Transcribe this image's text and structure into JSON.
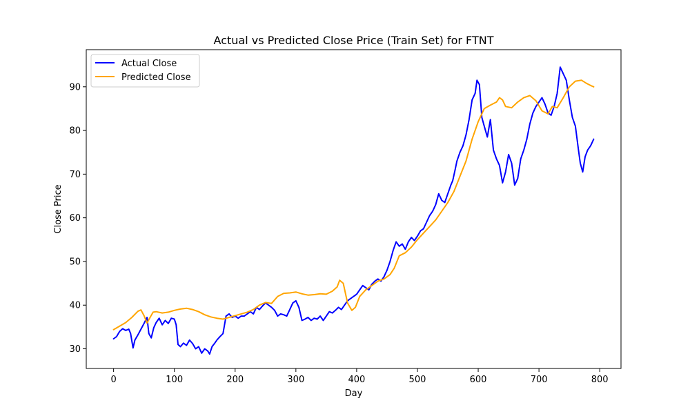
{
  "chart_data": {
    "type": "line",
    "title": "Actual vs Predicted Close Price (Train Set) for FTNT",
    "xlabel": "Day",
    "ylabel": "Close Price",
    "xlim": [
      -45,
      835
    ],
    "ylim": [
      25.5,
      98.5
    ],
    "xticks": [
      0,
      100,
      200,
      300,
      400,
      500,
      600,
      700,
      800
    ],
    "yticks": [
      30,
      40,
      50,
      60,
      70,
      80,
      90
    ],
    "grid": false,
    "legend_position": "top-left",
    "series": [
      {
        "name": "Actual Close",
        "color": "#0000ff",
        "points": [
          [
            0,
            32.3
          ],
          [
            5,
            32.8
          ],
          [
            10,
            34.0
          ],
          [
            15,
            34.6
          ],
          [
            20,
            34.2
          ],
          [
            25,
            34.5
          ],
          [
            28,
            33.5
          ],
          [
            32,
            30.2
          ],
          [
            35,
            32.0
          ],
          [
            40,
            33.2
          ],
          [
            45,
            34.5
          ],
          [
            50,
            35.8
          ],
          [
            55,
            37.2
          ],
          [
            58,
            33.5
          ],
          [
            62,
            32.5
          ],
          [
            66,
            34.8
          ],
          [
            70,
            36.0
          ],
          [
            75,
            37.0
          ],
          [
            80,
            35.5
          ],
          [
            85,
            36.5
          ],
          [
            90,
            35.8
          ],
          [
            95,
            37.0
          ],
          [
            100,
            36.8
          ],
          [
            103,
            35.5
          ],
          [
            106,
            31.0
          ],
          [
            110,
            30.5
          ],
          [
            115,
            31.3
          ],
          [
            120,
            30.8
          ],
          [
            125,
            32.0
          ],
          [
            130,
            31.2
          ],
          [
            135,
            30.0
          ],
          [
            140,
            30.5
          ],
          [
            145,
            29.0
          ],
          [
            150,
            30.0
          ],
          [
            155,
            29.5
          ],
          [
            158,
            28.8
          ],
          [
            162,
            30.5
          ],
          [
            166,
            31.2
          ],
          [
            170,
            32.0
          ],
          [
            175,
            32.8
          ],
          [
            180,
            33.5
          ],
          [
            185,
            37.5
          ],
          [
            190,
            38.0
          ],
          [
            195,
            37.2
          ],
          [
            200,
            37.5
          ],
          [
            205,
            37.0
          ],
          [
            210,
            37.5
          ],
          [
            215,
            37.5
          ],
          [
            220,
            38.0
          ],
          [
            225,
            38.5
          ],
          [
            230,
            38.0
          ],
          [
            235,
            39.5
          ],
          [
            240,
            39.0
          ],
          [
            245,
            39.8
          ],
          [
            250,
            40.5
          ],
          [
            255,
            40.0
          ],
          [
            260,
            39.5
          ],
          [
            265,
            38.8
          ],
          [
            270,
            37.5
          ],
          [
            275,
            38.0
          ],
          [
            280,
            37.8
          ],
          [
            285,
            37.5
          ],
          [
            290,
            39.0
          ],
          [
            295,
            40.5
          ],
          [
            300,
            41.0
          ],
          [
            305,
            39.5
          ],
          [
            310,
            36.5
          ],
          [
            315,
            36.8
          ],
          [
            320,
            37.2
          ],
          [
            325,
            36.5
          ],
          [
            330,
            37.0
          ],
          [
            335,
            36.8
          ],
          [
            340,
            37.5
          ],
          [
            345,
            36.5
          ],
          [
            350,
            37.5
          ],
          [
            355,
            38.5
          ],
          [
            360,
            38.2
          ],
          [
            365,
            38.8
          ],
          [
            370,
            39.5
          ],
          [
            375,
            39.0
          ],
          [
            380,
            40.0
          ],
          [
            385,
            41.0
          ],
          [
            390,
            41.5
          ],
          [
            395,
            42.0
          ],
          [
            400,
            42.5
          ],
          [
            405,
            43.5
          ],
          [
            410,
            44.5
          ],
          [
            415,
            44.0
          ],
          [
            420,
            43.5
          ],
          [
            425,
            44.8
          ],
          [
            430,
            45.5
          ],
          [
            435,
            46.0
          ],
          [
            440,
            45.5
          ],
          [
            445,
            46.5
          ],
          [
            450,
            48.0
          ],
          [
            455,
            50.0
          ],
          [
            460,
            52.5
          ],
          [
            465,
            54.5
          ],
          [
            470,
            53.5
          ],
          [
            475,
            54.0
          ],
          [
            480,
            52.8
          ],
          [
            485,
            54.5
          ],
          [
            490,
            55.5
          ],
          [
            495,
            54.8
          ],
          [
            500,
            55.8
          ],
          [
            505,
            57.0
          ],
          [
            510,
            57.5
          ],
          [
            515,
            59.0
          ],
          [
            520,
            60.5
          ],
          [
            525,
            61.5
          ],
          [
            530,
            63.0
          ],
          [
            535,
            65.5
          ],
          [
            540,
            64.0
          ],
          [
            545,
            63.5
          ],
          [
            550,
            65.5
          ],
          [
            555,
            67.5
          ],
          [
            558,
            68.5
          ],
          [
            562,
            71.0
          ],
          [
            565,
            73.0
          ],
          [
            570,
            75.0
          ],
          [
            575,
            76.5
          ],
          [
            580,
            79.0
          ],
          [
            585,
            82.5
          ],
          [
            590,
            87.0
          ],
          [
            595,
            88.5
          ],
          [
            598,
            91.5
          ],
          [
            602,
            90.5
          ],
          [
            606,
            83.0
          ],
          [
            610,
            81.0
          ],
          [
            615,
            78.5
          ],
          [
            620,
            82.5
          ],
          [
            625,
            75.5
          ],
          [
            630,
            73.5
          ],
          [
            635,
            72.0
          ],
          [
            640,
            68.0
          ],
          [
            645,
            70.5
          ],
          [
            650,
            74.5
          ],
          [
            655,
            72.5
          ],
          [
            660,
            67.5
          ],
          [
            665,
            69.0
          ],
          [
            670,
            73.5
          ],
          [
            675,
            75.5
          ],
          [
            680,
            78.0
          ],
          [
            685,
            81.5
          ],
          [
            690,
            84.0
          ],
          [
            695,
            85.5
          ],
          [
            700,
            86.5
          ],
          [
            705,
            87.5
          ],
          [
            710,
            86.0
          ],
          [
            715,
            84.0
          ],
          [
            720,
            83.5
          ],
          [
            725,
            85.5
          ],
          [
            730,
            88.5
          ],
          [
            735,
            94.5
          ],
          [
            740,
            93.0
          ],
          [
            745,
            91.5
          ],
          [
            750,
            87.0
          ],
          [
            755,
            83.0
          ],
          [
            760,
            81.0
          ],
          [
            765,
            75.5
          ],
          [
            768,
            72.5
          ],
          [
            772,
            70.5
          ],
          [
            776,
            74.0
          ],
          [
            780,
            75.5
          ],
          [
            785,
            76.5
          ],
          [
            790,
            78.0
          ]
        ]
      },
      {
        "name": "Predicted Close",
        "color": "#ffa500",
        "points": [
          [
            0,
            34.4
          ],
          [
            10,
            35.2
          ],
          [
            20,
            36.0
          ],
          [
            30,
            37.2
          ],
          [
            40,
            38.6
          ],
          [
            45,
            38.9
          ],
          [
            50,
            37.6
          ],
          [
            55,
            35.9
          ],
          [
            60,
            37.2
          ],
          [
            65,
            38.4
          ],
          [
            70,
            38.5
          ],
          [
            80,
            38.2
          ],
          [
            90,
            38.4
          ],
          [
            100,
            38.8
          ],
          [
            110,
            39.1
          ],
          [
            120,
            39.3
          ],
          [
            130,
            39.0
          ],
          [
            140,
            38.5
          ],
          [
            150,
            37.8
          ],
          [
            160,
            37.3
          ],
          [
            170,
            37.0
          ],
          [
            180,
            36.8
          ],
          [
            190,
            37.2
          ],
          [
            200,
            37.6
          ],
          [
            210,
            38.0
          ],
          [
            220,
            38.4
          ],
          [
            230,
            39.0
          ],
          [
            240,
            40.0
          ],
          [
            250,
            40.6
          ],
          [
            260,
            40.4
          ],
          [
            270,
            42.0
          ],
          [
            280,
            42.7
          ],
          [
            290,
            42.8
          ],
          [
            300,
            43.0
          ],
          [
            310,
            42.6
          ],
          [
            320,
            42.3
          ],
          [
            330,
            42.4
          ],
          [
            340,
            42.6
          ],
          [
            350,
            42.5
          ],
          [
            360,
            43.2
          ],
          [
            368,
            44.2
          ],
          [
            372,
            45.7
          ],
          [
            378,
            45.0
          ],
          [
            385,
            40.5
          ],
          [
            392,
            38.8
          ],
          [
            398,
            39.5
          ],
          [
            405,
            42.0
          ],
          [
            415,
            43.5
          ],
          [
            425,
            44.5
          ],
          [
            435,
            45.5
          ],
          [
            445,
            46.0
          ],
          [
            455,
            47.0
          ],
          [
            462,
            48.5
          ],
          [
            470,
            51.3
          ],
          [
            480,
            52.0
          ],
          [
            490,
            53.3
          ],
          [
            500,
            55.0
          ],
          [
            510,
            56.5
          ],
          [
            520,
            58.0
          ],
          [
            530,
            59.5
          ],
          [
            540,
            61.5
          ],
          [
            550,
            63.5
          ],
          [
            560,
            66.0
          ],
          [
            570,
            69.5
          ],
          [
            580,
            73.0
          ],
          [
            590,
            78.0
          ],
          [
            600,
            82.0
          ],
          [
            610,
            85.0
          ],
          [
            620,
            85.8
          ],
          [
            630,
            86.5
          ],
          [
            635,
            87.5
          ],
          [
            640,
            87.0
          ],
          [
            645,
            85.5
          ],
          [
            655,
            85.2
          ],
          [
            665,
            86.5
          ],
          [
            675,
            87.5
          ],
          [
            685,
            88.0
          ],
          [
            695,
            86.8
          ],
          [
            705,
            84.5
          ],
          [
            715,
            83.8
          ],
          [
            722,
            85.5
          ],
          [
            730,
            85.2
          ],
          [
            740,
            87.5
          ],
          [
            750,
            90.0
          ],
          [
            760,
            91.3
          ],
          [
            770,
            91.5
          ],
          [
            778,
            90.8
          ],
          [
            785,
            90.3
          ],
          [
            790,
            90.0
          ]
        ]
      }
    ]
  }
}
